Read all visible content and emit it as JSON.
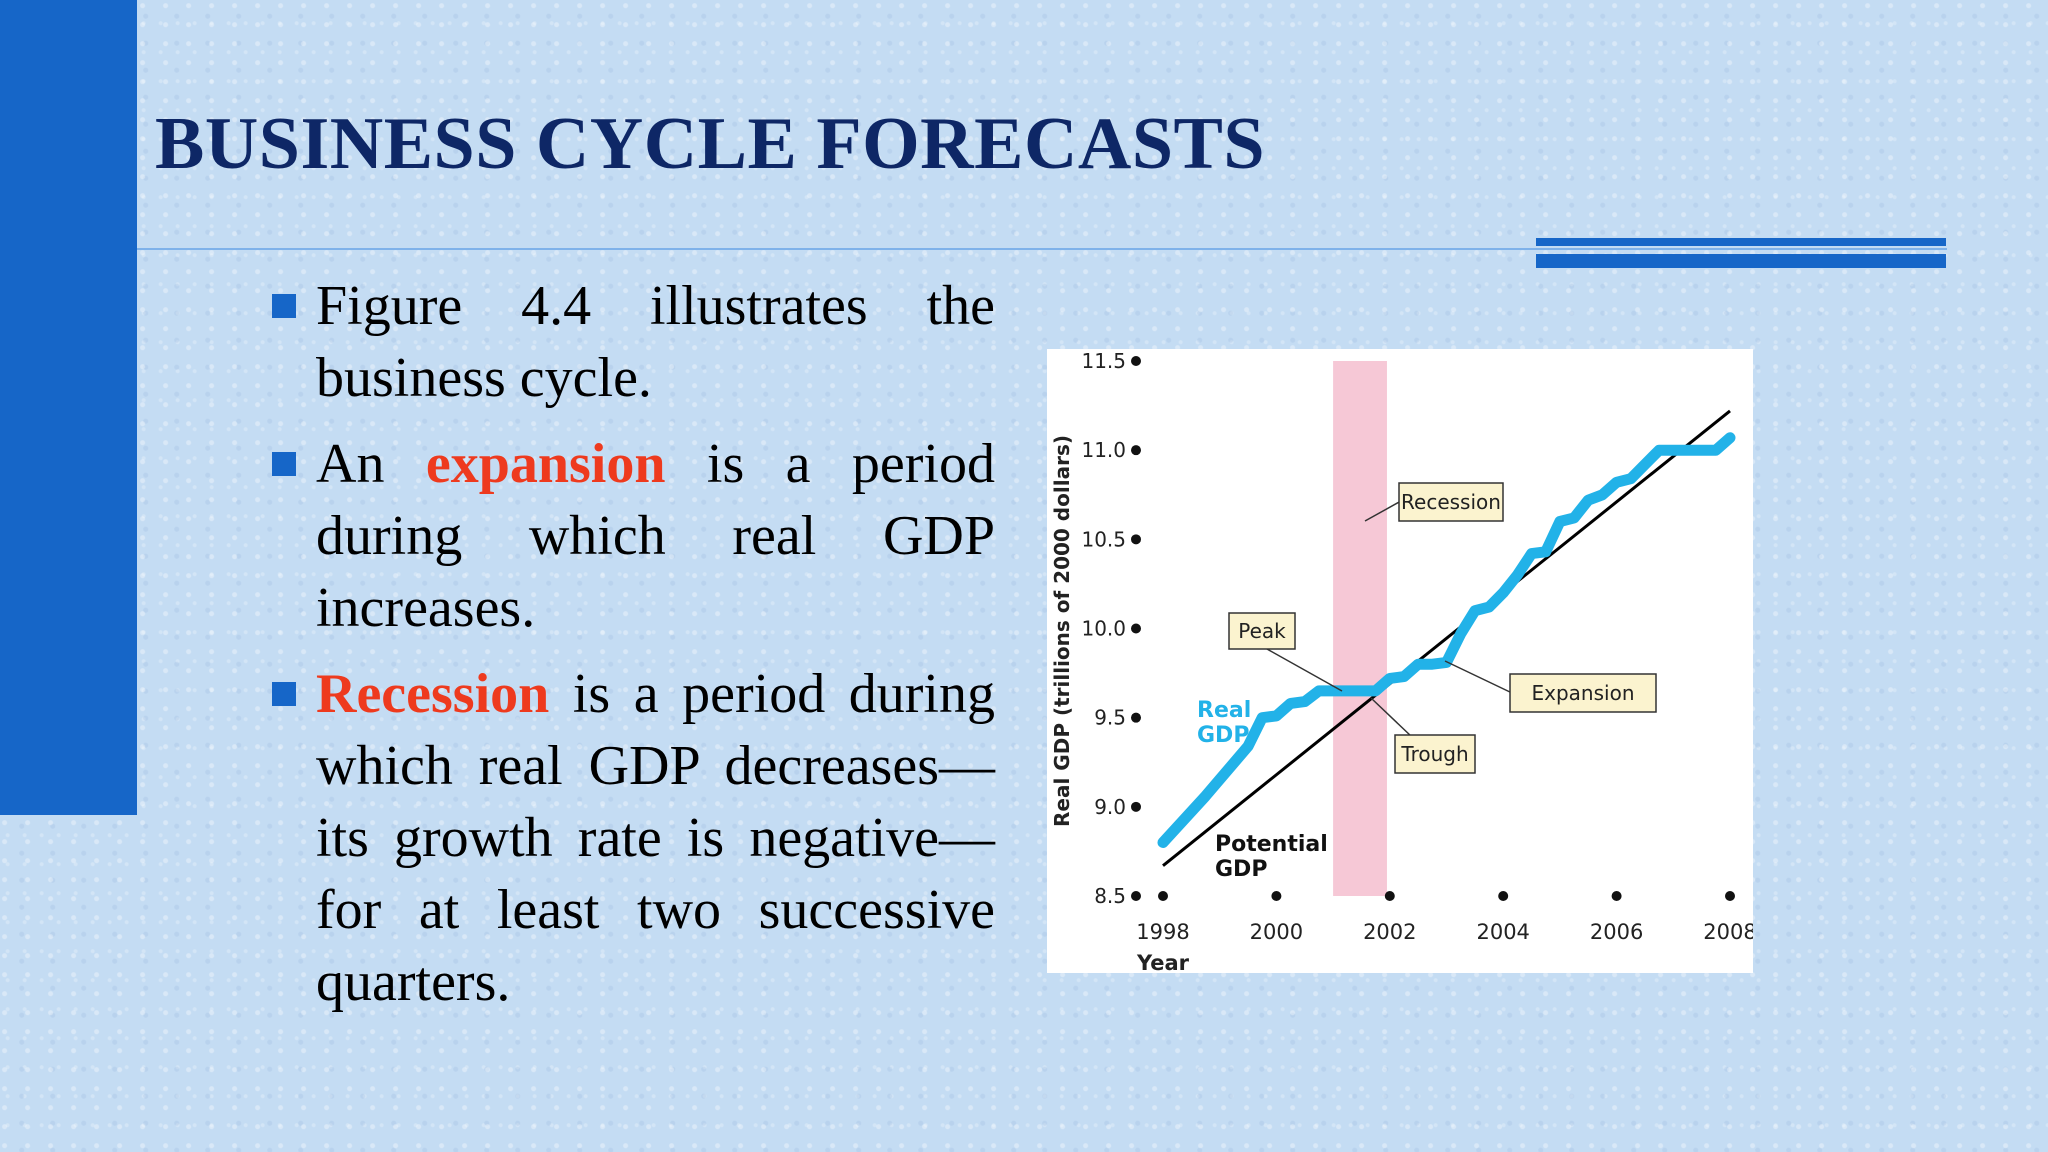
{
  "slide": {
    "title": "BUSINESS CYCLE FORECASTS",
    "bullets": [
      {
        "before": "Figure 4.4 illustrates the business cycle.",
        "highlight": "",
        "after": ""
      },
      {
        "before": "An ",
        "highlight": "expansion",
        "after": " is a period during which real GDP increases."
      },
      {
        "before": "",
        "highlight": "Recession",
        "after": " is a period during which real GDP decreases—its growth rate is negative—for at least two successive quarters."
      }
    ]
  },
  "colors": {
    "accent_blue": "#1666c8",
    "title_navy": "#0e2766",
    "highlight_red": "#ee3a1e",
    "real_gdp_line": "#22b2e8",
    "potential_gdp_line": "#000000",
    "recession_band": "#f6c8d6",
    "callout_fill": "#fbf3cf"
  },
  "chart_data": {
    "type": "line",
    "xlabel": "Year",
    "ylabel": "Real GDP (trillions of 2000 dollars)",
    "xlim": [
      1998,
      2008
    ],
    "ylim": [
      8.5,
      11.5
    ],
    "x_ticks": [
      1998,
      2000,
      2002,
      2004,
      2006,
      2008
    ],
    "y_ticks": [
      8.5,
      9.0,
      9.5,
      10.0,
      10.5,
      11.0,
      11.5
    ],
    "recession_band": [
      2001.0,
      2001.95
    ],
    "series": [
      {
        "name": "Real GDP",
        "x": [
          1998.0,
          1998.75,
          1999.5,
          1999.75,
          2000.0,
          2000.25,
          2000.5,
          2000.75,
          2001.0,
          2001.25,
          2001.5,
          2001.75,
          2002.0,
          2002.25,
          2002.5,
          2002.75,
          2003.0,
          2003.25,
          2003.5,
          2003.75,
          2004.0,
          2004.25,
          2004.5,
          2004.75,
          2005.0,
          2005.25,
          2005.5,
          2005.75,
          2006.0,
          2006.25,
          2006.5,
          2006.75,
          2007.0,
          2007.25,
          2007.5,
          2007.75,
          2008.0
        ],
        "values": [
          8.8,
          9.06,
          9.34,
          9.5,
          9.51,
          9.58,
          9.59,
          9.65,
          9.65,
          9.65,
          9.65,
          9.65,
          9.72,
          9.73,
          9.8,
          9.8,
          9.81,
          9.97,
          10.1,
          10.12,
          10.2,
          10.3,
          10.42,
          10.43,
          10.6,
          10.62,
          10.72,
          10.75,
          10.82,
          10.84,
          10.92,
          11.0,
          11.0,
          11.0,
          11.0,
          11.0,
          11.07
        ]
      },
      {
        "name": "Potential GDP",
        "x": [
          1998.0,
          2008.0
        ],
        "values": [
          8.67,
          11.22
        ]
      }
    ],
    "series_labels": [
      {
        "lines": [
          "Real",
          "GDP"
        ]
      },
      {
        "lines": [
          "Potential",
          "GDP"
        ]
      }
    ],
    "annotations": [
      {
        "label": "Recession"
      },
      {
        "label": "Peak"
      },
      {
        "label": "Expansion"
      },
      {
        "label": "Trough"
      }
    ]
  }
}
